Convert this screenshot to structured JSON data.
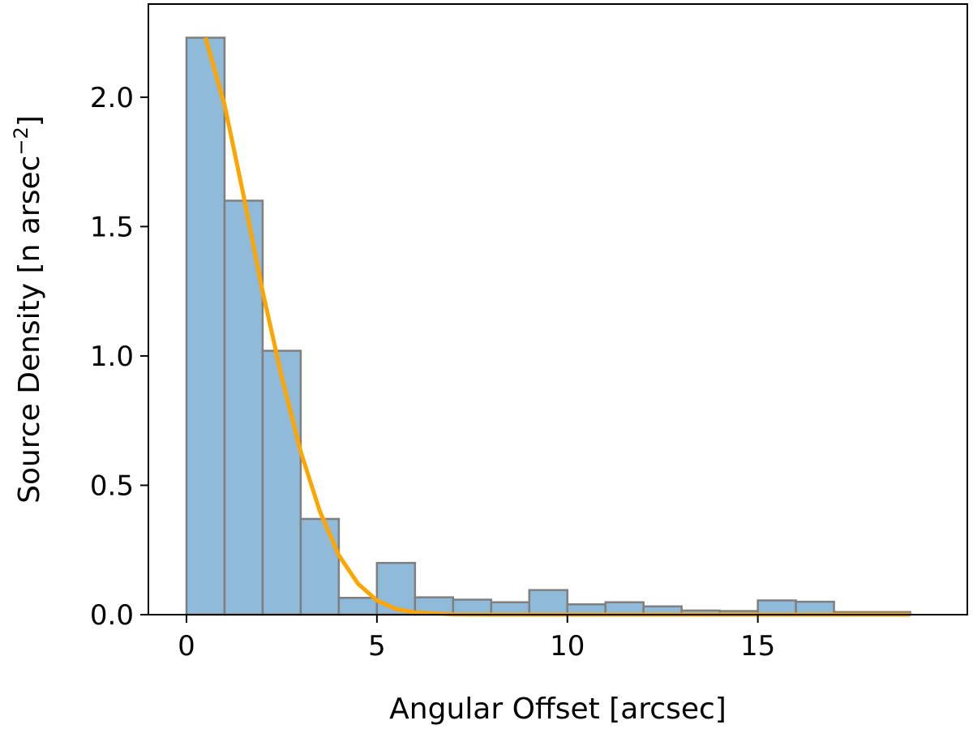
{
  "chart_data": {
    "type": "bar",
    "xlabel": "Angular Offset [arcsec]",
    "ylabel_main": "Source Density [n arsec",
    "ylabel_sup": "−2",
    "ylabel_close": "]",
    "xlim": [
      -1,
      20.5
    ],
    "ylim": [
      0,
      2.36
    ],
    "xticks": [
      0,
      5,
      10,
      15
    ],
    "xtick_labels": [
      "0",
      "5",
      "10",
      "15"
    ],
    "yticks": [
      0,
      0.5,
      1,
      1.5,
      2
    ],
    "ytick_labels": [
      "0.0",
      "0.5",
      "1.0",
      "1.5",
      "2.0"
    ],
    "bin_width": 1,
    "bins": [
      0,
      1,
      2,
      3,
      4,
      5,
      6,
      7,
      8,
      9,
      10,
      11,
      12,
      13,
      14,
      15,
      16,
      17,
      18
    ],
    "values": [
      2.23,
      1.6,
      1.02,
      0.37,
      0.065,
      0.2,
      0.067,
      0.058,
      0.048,
      0.095,
      0.04,
      0.048,
      0.032,
      0.016,
      0.014,
      0.055,
      0.05,
      0.01,
      0.01
    ],
    "bar_color": "#8fbad9",
    "bar_edge_color": "#7f7f7f",
    "fit_curve": {
      "color": "#ffa500",
      "x": [
        0.5,
        1,
        1.5,
        2,
        2.5,
        3,
        3.5,
        4,
        4.5,
        5,
        5.5,
        6,
        7,
        8,
        10,
        12,
        14,
        16,
        18,
        19
      ],
      "y": [
        2.23,
        1.97,
        1.62,
        1.25,
        0.92,
        0.63,
        0.4,
        0.23,
        0.12,
        0.055,
        0.022,
        0.008,
        0.001,
        0,
        0,
        0,
        0,
        0,
        0,
        0
      ]
    }
  }
}
